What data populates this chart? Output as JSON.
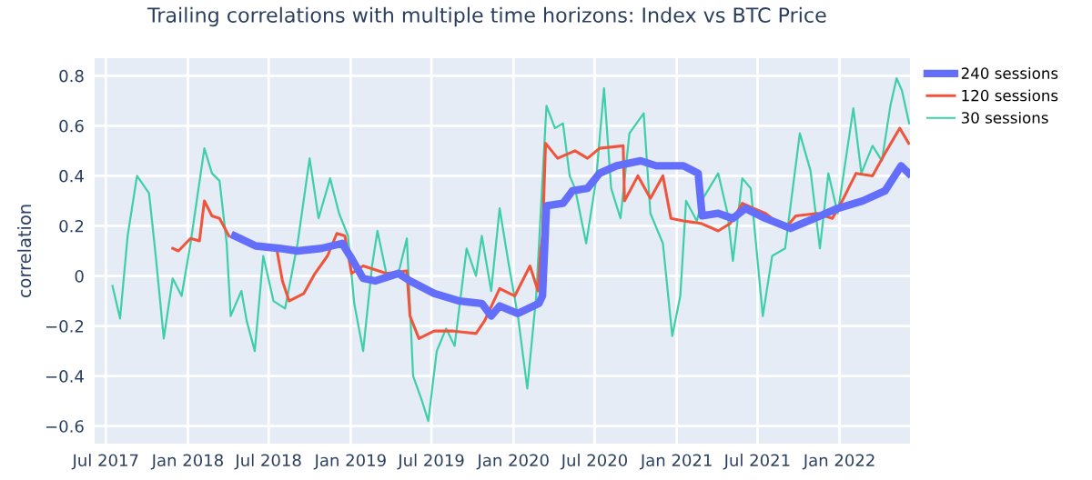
{
  "chart_data": {
    "type": "line",
    "title": "Trailing correlations with multiple time horizons: Index vs BTC Price",
    "ylabel": "correlation",
    "xlim": [
      "2017-06-06",
      "2022-06-08"
    ],
    "ylim": [
      -0.67,
      0.87
    ],
    "xticks": [
      {
        "value": "2017-07",
        "label": "Jul 2017"
      },
      {
        "value": "2018-01",
        "label": "Jan 2018"
      },
      {
        "value": "2018-07",
        "label": "Jul 2018"
      },
      {
        "value": "2019-01",
        "label": "Jan 2019"
      },
      {
        "value": "2019-07",
        "label": "Jul 2019"
      },
      {
        "value": "2020-01",
        "label": "Jan 2020"
      },
      {
        "value": "2020-07",
        "label": "Jul 2020"
      },
      {
        "value": "2021-01",
        "label": "Jan 2021"
      },
      {
        "value": "2021-07",
        "label": "Jul 2021"
      },
      {
        "value": "2022-01",
        "label": "Jan 2022"
      }
    ],
    "yticks": [
      {
        "value": -0.6,
        "label": "−0.6"
      },
      {
        "value": -0.4,
        "label": "−0.4"
      },
      {
        "value": -0.2,
        "label": "−0.2"
      },
      0,
      0.2,
      0.4,
      0.6,
      0.8
    ],
    "grid": true,
    "legend": "top right",
    "marker": "none",
    "line_style": "solid",
    "series": [
      {
        "name": "240 sessions",
        "color": "#636efa",
        "x": [
          "2018-04-16",
          "2018-06-02",
          "2018-07-25",
          "2018-09-04",
          "2018-10-27",
          "2018-12-13",
          "2019-01-03",
          "2019-01-29",
          "2019-02-25",
          "2019-04-18",
          "2019-05-14",
          "2019-07-07",
          "2019-09-01",
          "2019-10-22",
          "2019-11-12",
          "2019-12-01",
          "2020-01-11",
          "2020-02-27",
          "2020-03-06",
          "2020-03-15",
          "2020-04-21",
          "2020-05-12",
          "2020-06-15",
          "2020-07-12",
          "2020-08-19",
          "2020-10-12",
          "2020-11-16",
          "2021-01-16",
          "2021-02-18",
          "2021-02-27",
          "2021-04-04",
          "2021-05-07",
          "2021-06-04",
          "2021-07-19",
          "2021-09-13",
          "2021-11-06",
          "2021-12-28",
          "2022-02-22",
          "2022-04-13",
          "2022-05-19",
          "2022-06-05"
        ],
        "values": [
          0.16,
          0.12,
          0.11,
          0.1,
          0.11,
          0.13,
          0.07,
          -0.01,
          -0.02,
          0.01,
          -0.02,
          -0.07,
          -0.1,
          -0.11,
          -0.16,
          -0.12,
          -0.15,
          -0.11,
          -0.08,
          0.28,
          0.29,
          0.34,
          0.35,
          0.41,
          0.44,
          0.46,
          0.44,
          0.44,
          0.41,
          0.24,
          0.25,
          0.23,
          0.27,
          0.23,
          0.19,
          0.23,
          0.27,
          0.3,
          0.34,
          0.44,
          0.41
        ]
      },
      {
        "name": "120 sessions",
        "color": "#ef553b",
        "x": [
          "2017-11-28",
          "2017-12-11",
          "2018-01-07",
          "2018-01-27",
          "2018-02-07",
          "2018-02-24",
          "2018-03-13",
          "2018-04-03",
          "2018-05-01",
          "2018-06-02",
          "2018-07-18",
          "2018-08-01",
          "2018-08-16",
          "2018-09-18",
          "2018-10-13",
          "2018-11-10",
          "2018-12-01",
          "2018-12-19",
          "2019-01-03",
          "2019-01-29",
          "2019-03-22",
          "2019-05-07",
          "2019-05-14",
          "2019-06-03",
          "2019-07-07",
          "2019-08-16",
          "2019-10-09",
          "2019-10-28",
          "2019-12-01",
          "2020-01-04",
          "2020-02-07",
          "2020-02-25",
          "2020-03-01",
          "2020-03-06",
          "2020-03-13",
          "2020-04-09",
          "2020-05-18",
          "2020-06-15",
          "2020-07-12",
          "2020-09-03",
          "2020-09-06",
          "2020-10-06",
          "2020-11-03",
          "2020-12-01",
          "2020-12-19",
          "2021-01-16",
          "2021-02-24",
          "2021-04-04",
          "2021-05-01",
          "2021-05-28",
          "2021-06-22",
          "2021-07-19",
          "2021-09-01",
          "2021-09-25",
          "2021-11-12",
          "2021-12-16",
          "2022-01-10",
          "2022-02-07",
          "2022-03-16",
          "2022-04-13",
          "2022-05-16",
          "2022-06-05"
        ],
        "values": [
          0.11,
          0.1,
          0.15,
          0.14,
          0.3,
          0.24,
          0.23,
          0.16,
          null,
          null,
          0.12,
          -0.02,
          -0.1,
          -0.07,
          0.01,
          0.08,
          0.17,
          0.16,
          0.01,
          0.04,
          0.01,
          0.02,
          -0.16,
          -0.25,
          -0.22,
          -0.22,
          -0.23,
          -0.18,
          -0.05,
          -0.08,
          0.04,
          -0.06,
          0.08,
          0.16,
          0.53,
          0.47,
          0.5,
          0.47,
          0.51,
          0.52,
          0.3,
          0.4,
          0.31,
          0.4,
          0.23,
          0.22,
          0.21,
          0.18,
          0.21,
          0.29,
          0.27,
          0.25,
          0.19,
          0.24,
          0.25,
          0.23,
          0.31,
          0.41,
          0.4,
          0.49,
          0.59,
          0.53
        ]
      },
      {
        "name": "30 sessions",
        "color": "#3ecfa8",
        "x": [
          "2017-07-16",
          "2017-08-02",
          "2017-08-19",
          "2017-09-09",
          "2017-10-06",
          "2017-10-21",
          "2017-11-08",
          "2017-11-28",
          "2017-12-18",
          "2018-01-07",
          "2018-02-07",
          "2018-02-24",
          "2018-03-13",
          "2018-03-29",
          "2018-04-07",
          "2018-05-01",
          "2018-05-13",
          "2018-05-31",
          "2018-06-19",
          "2018-07-12",
          "2018-08-07",
          "2018-09-04",
          "2018-10-01",
          "2018-10-21",
          "2018-11-16",
          "2018-12-06",
          "2018-12-26",
          "2019-01-09",
          "2019-01-29",
          "2019-02-18",
          "2019-03-02",
          "2019-03-22",
          "2019-04-18",
          "2019-05-07",
          "2019-05-21",
          "2019-06-10",
          "2019-06-24",
          "2019-07-13",
          "2019-08-03",
          "2019-08-22",
          "2019-09-18",
          "2019-10-09",
          "2019-10-22",
          "2019-11-12",
          "2019-12-01",
          "2019-12-21",
          "2020-01-11",
          "2020-02-01",
          "2020-02-21",
          "2020-03-15",
          "2020-04-03",
          "2020-04-21",
          "2020-05-06",
          "2020-05-18",
          "2020-06-12",
          "2020-07-04",
          "2020-07-22",
          "2020-08-07",
          "2020-08-28",
          "2020-09-17",
          "2020-10-19",
          "2020-11-03",
          "2020-12-01",
          "2020-12-22",
          "2021-01-09",
          "2021-01-22",
          "2021-02-15",
          "2021-03-01",
          "2021-04-04",
          "2021-04-25",
          "2021-05-07",
          "2021-05-28",
          "2021-06-16",
          "2021-07-13",
          "2021-08-03",
          "2021-09-01",
          "2021-10-04",
          "2021-10-28",
          "2021-11-18",
          "2021-12-07",
          "2021-12-28",
          "2022-02-01",
          "2022-02-19",
          "2022-03-16",
          "2022-04-06",
          "2022-04-25",
          "2022-05-09",
          "2022-05-21",
          "2022-06-06"
        ],
        "values": [
          -0.04,
          -0.17,
          0.16,
          0.4,
          0.33,
          0.08,
          -0.25,
          -0.01,
          -0.08,
          0.13,
          0.51,
          0.41,
          0.38,
          0.13,
          -0.16,
          -0.06,
          -0.18,
          -0.3,
          0.08,
          -0.1,
          -0.13,
          0.13,
          0.47,
          0.23,
          0.39,
          0.25,
          0.16,
          -0.11,
          -0.3,
          0.04,
          0.18,
          0.01,
          0.01,
          0.15,
          -0.4,
          -0.5,
          -0.58,
          -0.3,
          -0.21,
          -0.28,
          0.11,
          0.0,
          0.16,
          -0.06,
          0.27,
          0.05,
          -0.16,
          -0.45,
          -0.08,
          0.68,
          0.59,
          0.61,
          0.4,
          0.35,
          0.13,
          0.38,
          0.75,
          0.35,
          0.23,
          0.57,
          0.65,
          0.25,
          0.13,
          -0.24,
          -0.08,
          0.3,
          0.22,
          0.31,
          0.41,
          0.25,
          0.06,
          0.39,
          0.35,
          -0.16,
          0.08,
          0.11,
          0.57,
          0.42,
          0.11,
          0.41,
          0.25,
          0.67,
          0.41,
          0.52,
          0.46,
          0.68,
          0.79,
          0.74,
          0.61
        ]
      }
    ]
  }
}
